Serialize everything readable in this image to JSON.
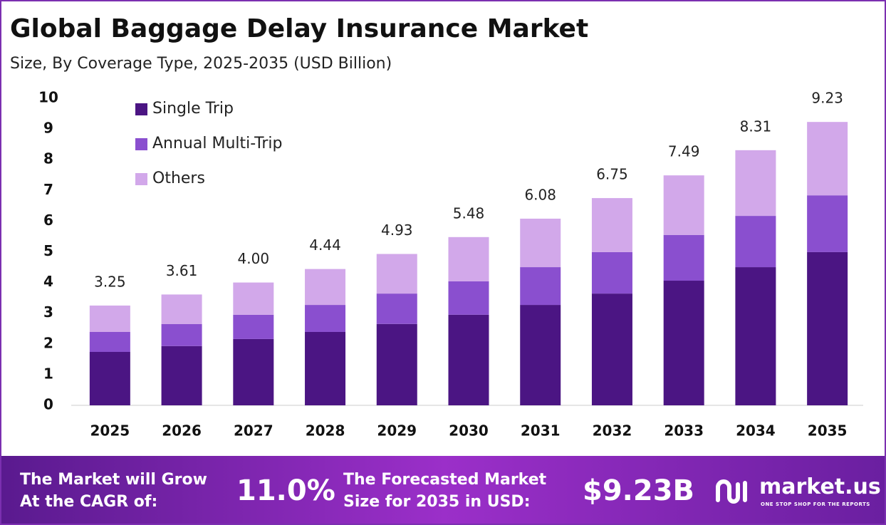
{
  "chart_data": {
    "type": "stacked_bar",
    "title": "Global Baggage Delay Insurance Market",
    "subtitle": "Size, By Coverage Type, 2025-2035 (USD Billion)",
    "categories": [
      "2025",
      "2026",
      "2027",
      "2028",
      "2029",
      "2030",
      "2031",
      "2032",
      "2033",
      "2034",
      "2035"
    ],
    "series": [
      {
        "name": "Single Trip",
        "color": "#4b1583",
        "values": [
          1.74,
          1.93,
          2.16,
          2.39,
          2.65,
          2.95,
          3.27,
          3.64,
          4.06,
          4.5,
          4.99
        ]
      },
      {
        "name": "Annual Multi-Trip",
        "color": "#8a4fcf",
        "values": [
          0.65,
          0.72,
          0.79,
          0.88,
          0.99,
          1.09,
          1.23,
          1.35,
          1.49,
          1.67,
          1.85
        ]
      },
      {
        "name": "Others",
        "color": "#d2a8ea",
        "values": [
          0.86,
          0.96,
          1.05,
          1.17,
          1.29,
          1.44,
          1.58,
          1.76,
          1.94,
          2.14,
          2.39
        ]
      }
    ],
    "totals": [
      3.25,
      3.61,
      4.0,
      4.44,
      4.93,
      5.48,
      6.08,
      6.75,
      7.49,
      8.31,
      9.23
    ],
    "total_labels": [
      "3.25",
      "3.61",
      "4.00",
      "4.44",
      "4.93",
      "5.48",
      "6.08",
      "6.75",
      "7.49",
      "8.31",
      "9.23"
    ],
    "ylim": [
      0,
      10
    ],
    "yticks": [
      0,
      1,
      2,
      3,
      4,
      5,
      6,
      7,
      8,
      9,
      10
    ],
    "legend": "top-left"
  },
  "footer": {
    "cagr_text": [
      "The Market will Grow",
      "At the CAGR of:"
    ],
    "cagr_value": "11.0%",
    "size_text": [
      "The Forecasted Market",
      "Size for 2035 in USD:"
    ],
    "size_value": "$9.23B",
    "brand": "market.us",
    "tagline": "ONE STOP SHOP FOR THE REPORTS"
  }
}
